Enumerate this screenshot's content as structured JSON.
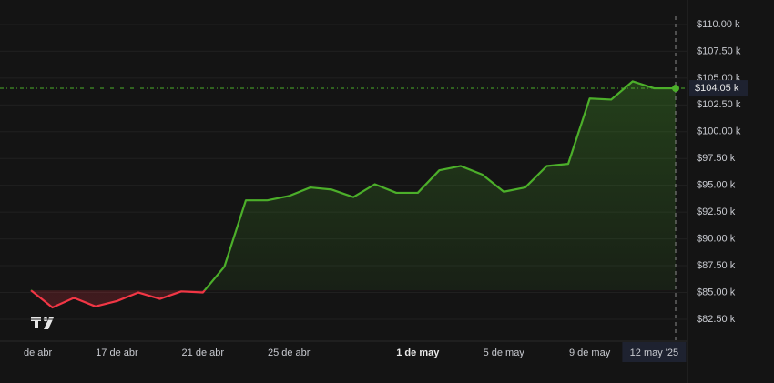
{
  "chart_data": {
    "type": "line",
    "values": [
      85200,
      83600,
      84500,
      83700,
      84200,
      85000,
      84400,
      85100,
      85000,
      87400,
      93600,
      93600,
      94000,
      94800,
      94600,
      93900,
      95100,
      94300,
      94300,
      96400,
      96800,
      96000,
      94400,
      94800,
      96800,
      97000,
      103100,
      103000,
      104700,
      104050,
      104050
    ],
    "color_up": "#4caf2a",
    "color_down": "#f23645",
    "last_label": "$104.05 k",
    "xlim": [
      0,
      30
    ],
    "xticks": [
      {
        "value": 0,
        "label": "de abr"
      },
      {
        "value": 4,
        "label": "17 de abr"
      },
      {
        "value": 8,
        "label": "21 de abr"
      },
      {
        "value": 12,
        "label": "25 de abr"
      },
      {
        "value": 18,
        "label": "1 de may"
      },
      {
        "value": 22,
        "label": "5 de may"
      },
      {
        "value": 26,
        "label": "9 de may"
      },
      {
        "value": 29,
        "label": "12 may '25"
      }
    ],
    "ylim": [
      80460,
      110760
    ],
    "yticks": [
      {
        "value": 82500,
        "label": "$82.50 k"
      },
      {
        "value": 85000,
        "label": "$85.00 k"
      },
      {
        "value": 87500,
        "label": "$87.50 k"
      },
      {
        "value": 90000,
        "label": "$90.00 k"
      },
      {
        "value": 92500,
        "label": "$92.50 k"
      },
      {
        "value": 95000,
        "label": "$95.00 k"
      },
      {
        "value": 97500,
        "label": "$97.50 k"
      },
      {
        "value": 100000,
        "label": "$100.00 k"
      },
      {
        "value": 102500,
        "label": "$102.50 k"
      },
      {
        "value": 105000,
        "label": "$105.00 k"
      },
      {
        "value": 107500,
        "label": "$107.50 k"
      },
      {
        "value": 110000,
        "label": "$110.00 k"
      }
    ],
    "grid": true
  }
}
